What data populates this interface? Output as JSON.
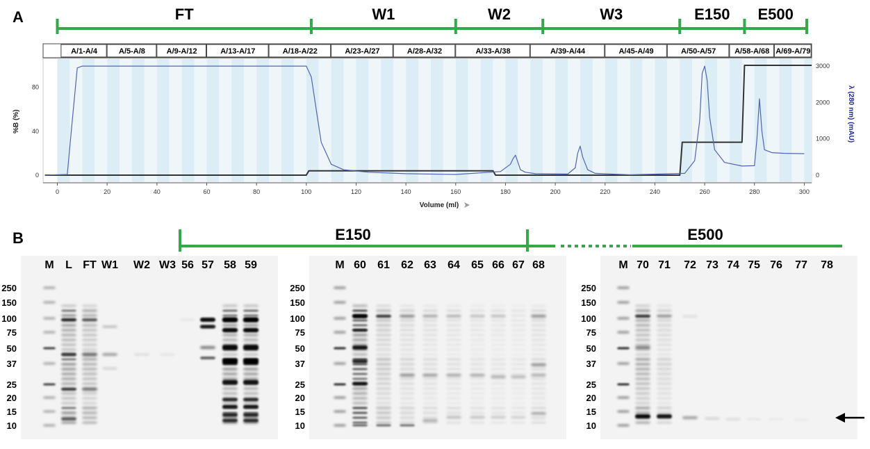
{
  "panel_a": {
    "letter": "A",
    "phases": [
      {
        "label": "FT",
        "start": 0,
        "end": 102
      },
      {
        "label": "W1",
        "start": 102,
        "end": 160
      },
      {
        "label": "W2",
        "start": 160,
        "end": 195
      },
      {
        "label": "W3",
        "start": 195,
        "end": 250
      },
      {
        "label": "E150",
        "start": 250,
        "end": 276
      },
      {
        "label": "E500",
        "start": 276,
        "end": 301
      }
    ],
    "fractions": [
      {
        "label": "A/1-A/4",
        "start": 2,
        "end": 20
      },
      {
        "label": "A/5-A/8",
        "start": 20,
        "end": 40
      },
      {
        "label": "A/9-A/12",
        "start": 40,
        "end": 60
      },
      {
        "label": "A/13-A/17",
        "start": 60,
        "end": 85
      },
      {
        "label": "A/18-A/22",
        "start": 85,
        "end": 110
      },
      {
        "label": "A/23-A/27",
        "start": 110,
        "end": 135
      },
      {
        "label": "A/28-A/32",
        "start": 135,
        "end": 160
      },
      {
        "label": "A/33-A/38",
        "start": 160,
        "end": 190
      },
      {
        "label": "A/39-A/44",
        "start": 190,
        "end": 220
      },
      {
        "label": "A/45-A/49",
        "start": 220,
        "end": 245
      },
      {
        "label": "A/50-A/57",
        "start": 245,
        "end": 270
      },
      {
        "label": "A/58-A/68",
        "start": 270,
        "end": 288
      },
      {
        "label": "A/69-A/79",
        "start": 288,
        "end": 305
      }
    ],
    "chart_data": {
      "type": "line",
      "xlabel": "Volume (ml)",
      "ylabel_left": "%B (%)",
      "ylabel_right": "λ (280 nm) (mAU)",
      "xlim": [
        -5,
        303
      ],
      "ylim_left": [
        -5,
        104
      ],
      "ylim_right": [
        -200,
        3100
      ],
      "xticks": [
        "0",
        "20",
        "40",
        "60",
        "80",
        "100",
        "120",
        "140",
        "160",
        "180",
        "200",
        "220",
        "240",
        "260",
        "280",
        "300"
      ],
      "yticks_left": [
        "0",
        "40",
        "80"
      ],
      "yticks_right": [
        "0",
        "1000",
        "2000",
        "3000"
      ],
      "series": [
        {
          "name": "%B",
          "color": "#333333",
          "x": [
            -5,
            100,
            101,
            175,
            176,
            250,
            251,
            275,
            276,
            303
          ],
          "y": [
            0,
            0,
            4,
            4,
            0,
            0,
            30,
            30,
            100,
            100
          ]
        },
        {
          "name": "A280",
          "color": "#5064b4",
          "x": [
            -5,
            4,
            6,
            8,
            10,
            100,
            102,
            104,
            106,
            110,
            115,
            125,
            140,
            160,
            178,
            182,
            183,
            184,
            185,
            186,
            188,
            192,
            205,
            208,
            209,
            210,
            211,
            213,
            216,
            230,
            252,
            256,
            258,
            259,
            260,
            261,
            262,
            264,
            268,
            275,
            280,
            281,
            282,
            283,
            284,
            287,
            292,
            300
          ],
          "y": [
            0,
            20,
            1500,
            2950,
            3000,
            3000,
            2700,
            1800,
            900,
            300,
            150,
            80,
            40,
            20,
            100,
            300,
            450,
            550,
            350,
            150,
            80,
            40,
            30,
            200,
            600,
            800,
            500,
            150,
            50,
            10,
            50,
            400,
            1500,
            2800,
            3000,
            2600,
            1600,
            700,
            350,
            250,
            260,
            1000,
            2100,
            1200,
            700,
            620,
            600,
            590
          ]
        }
      ]
    }
  },
  "panel_b": {
    "letter": "B",
    "e150_label": "E150",
    "e500_label": "E500",
    "mw_markers": [
      "250",
      "150",
      "100",
      "75",
      "50",
      "37",
      "25",
      "20",
      "15",
      "10"
    ],
    "gel1_lanes": [
      "M",
      "L",
      "FT",
      "W1",
      "W2",
      "W3",
      "56",
      "57",
      "58",
      "59"
    ],
    "gel2_lanes": [
      "M",
      "60",
      "61",
      "62",
      "63",
      "64",
      "65",
      "66",
      "67",
      "68"
    ],
    "gel3_lanes": [
      "M",
      "70",
      "71",
      "72",
      "73",
      "74",
      "75",
      "76",
      "77",
      "78"
    ]
  }
}
